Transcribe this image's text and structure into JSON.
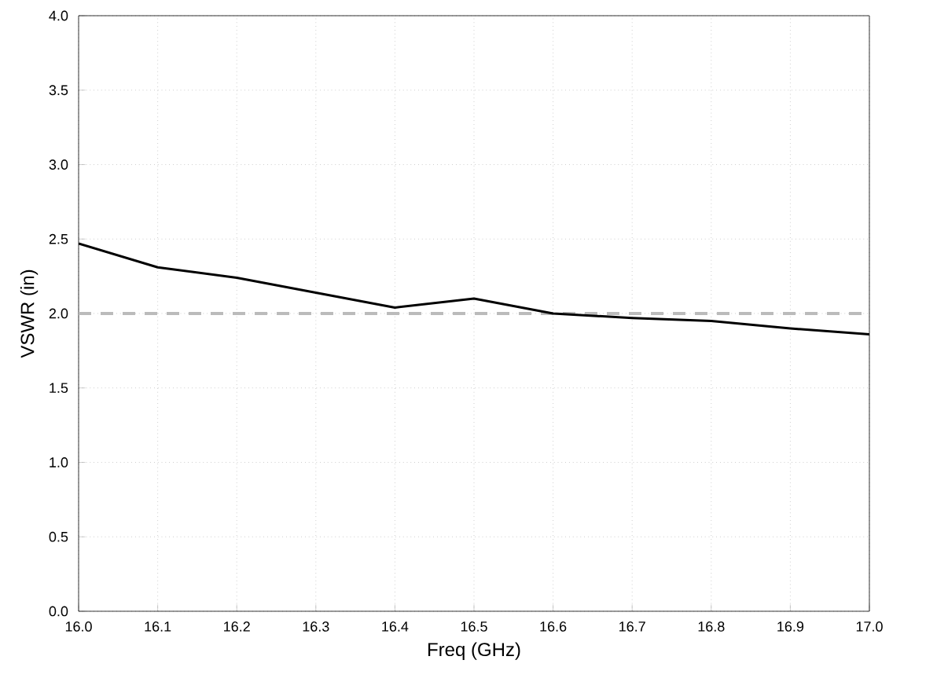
{
  "chart_data": {
    "type": "line",
    "xlabel": "Freq (GHz)",
    "ylabel": "VSWR (in)",
    "x": [
      16.0,
      16.1,
      16.2,
      16.3,
      16.4,
      16.5,
      16.6,
      16.7,
      16.8,
      16.9,
      17.0
    ],
    "series": [
      {
        "color": "#000000",
        "values": [
          2.47,
          2.31,
          2.24,
          2.14,
          2.04,
          2.1,
          2.0,
          1.97,
          1.95,
          1.9,
          1.86
        ]
      }
    ],
    "ref_lines": [
      {
        "axis": "y",
        "value": 2.0,
        "color": "#bbbbbb",
        "line_style": "dashed"
      }
    ],
    "xlim": [
      16.0,
      17.0
    ],
    "ylim": [
      0.0,
      4.0
    ],
    "xticks": [
      {
        "value": 16.0,
        "label": "16.0"
      },
      {
        "value": 16.1,
        "label": "16.1"
      },
      {
        "value": 16.2,
        "label": "16.2"
      },
      {
        "value": 16.3,
        "label": "16.3"
      },
      {
        "value": 16.4,
        "label": "16.4"
      },
      {
        "value": 16.5,
        "label": "16.5"
      },
      {
        "value": 16.6,
        "label": "16.6"
      },
      {
        "value": 16.7,
        "label": "16.7"
      },
      {
        "value": 16.8,
        "label": "16.8"
      },
      {
        "value": 16.9,
        "label": "16.9"
      },
      {
        "value": 17.0,
        "label": "17.0"
      }
    ],
    "yticks": [
      {
        "value": 0.0,
        "label": "0.0"
      },
      {
        "value": 0.5,
        "label": "0.5"
      },
      {
        "value": 1.0,
        "label": "1.0"
      },
      {
        "value": 1.5,
        "label": "1.5"
      },
      {
        "value": 2.0,
        "label": "2.0"
      },
      {
        "value": 2.5,
        "label": "2.5"
      },
      {
        "value": 3.0,
        "label": "3.0"
      },
      {
        "value": 3.5,
        "label": "3.5"
      },
      {
        "value": 4.0,
        "label": "4.0"
      }
    ],
    "grid": true,
    "line_style": "solid",
    "marker": "none"
  }
}
